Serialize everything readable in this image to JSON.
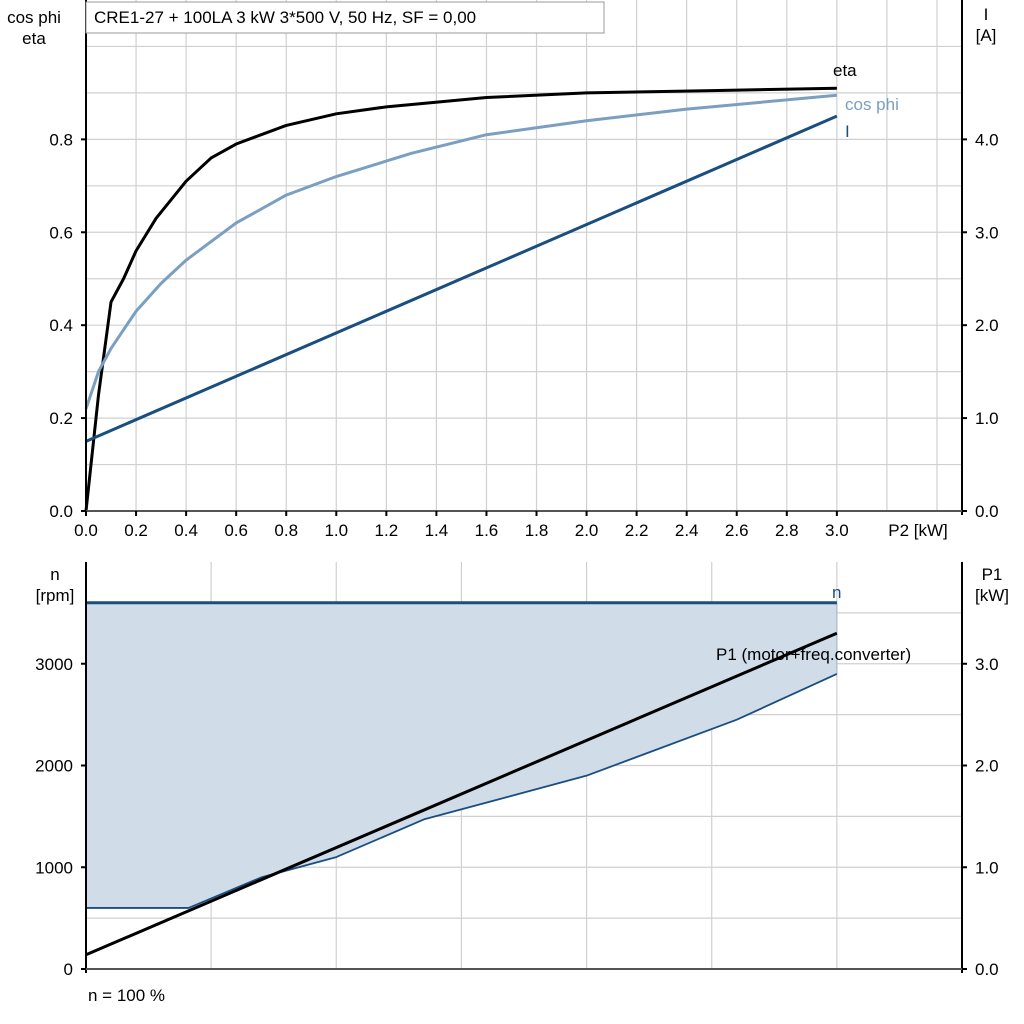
{
  "chart_data": [
    {
      "type": "line",
      "title": "CRE1-27 + 100LA   3 kW   3*500 V, 50 Hz, SF = 0,00",
      "xlabel": "P2 [kW]",
      "ylabel_left": [
        "cos phi",
        "eta"
      ],
      "ylabel_right": [
        "I",
        "[A]"
      ],
      "xlim": [
        0,
        3.5
      ],
      "ylim_left": [
        0,
        1.1
      ],
      "ylim_right": [
        0,
        5.5
      ],
      "grid": true,
      "x_ticks": [
        "0.0",
        "0.2",
        "0.4",
        "0.6",
        "0.8",
        "1.0",
        "1.2",
        "1.4",
        "1.6",
        "1.8",
        "2.0",
        "2.2",
        "2.4",
        "2.6",
        "2.8",
        "3.0"
      ],
      "y_left_ticks": [
        "0.0",
        "0.2",
        "0.4",
        "0.6",
        "0.8"
      ],
      "y_right_ticks": [
        "0.0",
        "1.0",
        "2.0",
        "3.0",
        "4.0"
      ],
      "series": [
        {
          "name": "eta",
          "axis": "left",
          "color": "#000000",
          "x": [
            0,
            0.05,
            0.1,
            0.15,
            0.2,
            0.28,
            0.4,
            0.5,
            0.6,
            0.8,
            1.0,
            1.2,
            1.6,
            2.0,
            2.5,
            3.0
          ],
          "y": [
            0,
            0.25,
            0.45,
            0.5,
            0.56,
            0.63,
            0.71,
            0.76,
            0.79,
            0.83,
            0.855,
            0.87,
            0.89,
            0.9,
            0.905,
            0.91
          ]
        },
        {
          "name": "cos phi",
          "axis": "left",
          "color": "#7a9fc0",
          "x": [
            0,
            0.05,
            0.1,
            0.2,
            0.3,
            0.4,
            0.6,
            0.8,
            1.0,
            1.3,
            1.6,
            2.0,
            2.4,
            3.0
          ],
          "y": [
            0.22,
            0.3,
            0.35,
            0.43,
            0.49,
            0.54,
            0.62,
            0.68,
            0.72,
            0.77,
            0.81,
            0.84,
            0.865,
            0.895
          ]
        },
        {
          "name": "I",
          "axis": "right",
          "color": "#1a4e80",
          "x": [
            0,
            3.0
          ],
          "y": [
            0.75,
            4.25
          ]
        }
      ]
    },
    {
      "type": "area",
      "xlabel": "",
      "ylabel_left": [
        "n",
        "[rpm]"
      ],
      "ylabel_right": [
        "P1",
        "[kW]"
      ],
      "xlim": [
        0,
        3.5
      ],
      "ylim_left": [
        0,
        4000
      ],
      "ylim_right": [
        0,
        4.0
      ],
      "grid": true,
      "y_left_ticks": [
        "0",
        "1000",
        "2000",
        "3000"
      ],
      "y_right_ticks": [
        "0.0",
        "1.0",
        "2.0",
        "3.0"
      ],
      "footnote": "n = 100 %",
      "fill_color": "#d0dce8",
      "series": [
        {
          "name": "n",
          "axis": "left",
          "color": "#1a4e80",
          "x": [
            0,
            3.0
          ],
          "y": [
            3600,
            3600
          ]
        },
        {
          "axis": "left",
          "color": "#1a4e80",
          "role": "lower-bound",
          "x": [
            0,
            0.41,
            0.7,
            1.0,
            1.35,
            2.0,
            2.6,
            3.0
          ],
          "y": [
            600,
            600,
            900,
            1100,
            1470,
            1900,
            2450,
            2900
          ]
        },
        {
          "name": "P1 (motor+freq.converter)",
          "axis": "right",
          "color": "#000000",
          "x": [
            0,
            3.0
          ],
          "y": [
            0.14,
            3.3
          ]
        }
      ]
    }
  ]
}
